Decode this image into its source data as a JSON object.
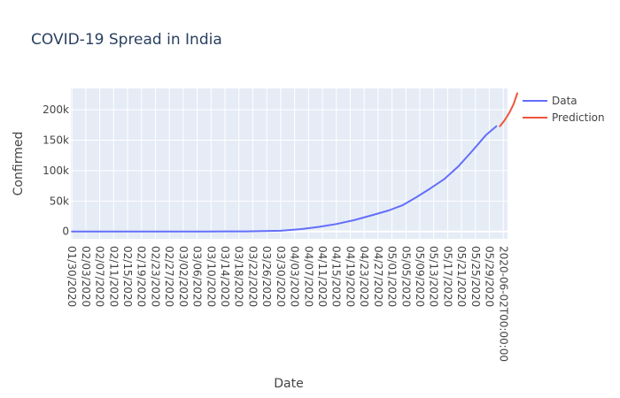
{
  "chart_data": {
    "type": "line",
    "title": "COVID-19 Spread in India",
    "xlabel": "Date",
    "ylabel": "Confirmed",
    "x_range_days": [
      -0.3,
      125.2
    ],
    "ylim": [
      -12000,
      235000
    ],
    "y_ticks": [
      0,
      50000,
      100000,
      150000,
      200000
    ],
    "y_tick_labels": [
      "0",
      "50k",
      "100k",
      "150k",
      "200k"
    ],
    "x_tick_labels": [
      "01/30/2020",
      "02/03/2020",
      "02/07/2020",
      "02/11/2020",
      "02/15/2020",
      "02/19/2020",
      "02/23/2020",
      "02/27/2020",
      "03/02/2020",
      "03/06/2020",
      "03/10/2020",
      "03/14/2020",
      "03/18/2020",
      "03/22/2020",
      "03/26/2020",
      "03/30/2020",
      "04/03/2020",
      "04/07/2020",
      "04/11/2020",
      "04/15/2020",
      "04/19/2020",
      "04/23/2020",
      "04/27/2020",
      "05/01/2020",
      "05/05/2020",
      "05/09/2020",
      "05/13/2020",
      "05/17/2020",
      "05/21/2020",
      "05/25/2020",
      "05/29/2020",
      "2020-06-02T00:00:00"
    ],
    "legend_position": "top-right",
    "grid": true,
    "series": [
      {
        "name": "Data",
        "color": "#636efa",
        "points": [
          [
            "01/30/2020",
            1
          ],
          [
            "02/10/2020",
            3
          ],
          [
            "02/25/2020",
            3
          ],
          [
            "03/10/2020",
            60
          ],
          [
            "03/20/2020",
            250
          ],
          [
            "03/30/2020",
            1250
          ],
          [
            "04/05/2020",
            4000
          ],
          [
            "04/10/2020",
            7600
          ],
          [
            "04/15/2020",
            12300
          ],
          [
            "04/20/2020",
            18500
          ],
          [
            "04/25/2020",
            26300
          ],
          [
            "04/30/2020",
            34500
          ],
          [
            "05/04/2020",
            43000
          ],
          [
            "05/08/2020",
            56300
          ],
          [
            "05/12/2020",
            70700
          ],
          [
            "05/16/2020",
            86000
          ],
          [
            "05/20/2020",
            106500
          ],
          [
            "05/24/2020",
            131800
          ],
          [
            "05/28/2020",
            158300
          ],
          [
            "05/31/2020",
            173000
          ]
        ]
      },
      {
        "name": "Prediction",
        "color": "#ef553b",
        "points": [
          [
            "06/01/2020",
            173000
          ],
          [
            "06/02/2020",
            180000
          ],
          [
            "06/03/2020",
            188000
          ],
          [
            "06/04/2020",
            198000
          ],
          [
            "06/05/2020",
            210000
          ],
          [
            "06/06/2020",
            227000
          ]
        ]
      }
    ]
  }
}
